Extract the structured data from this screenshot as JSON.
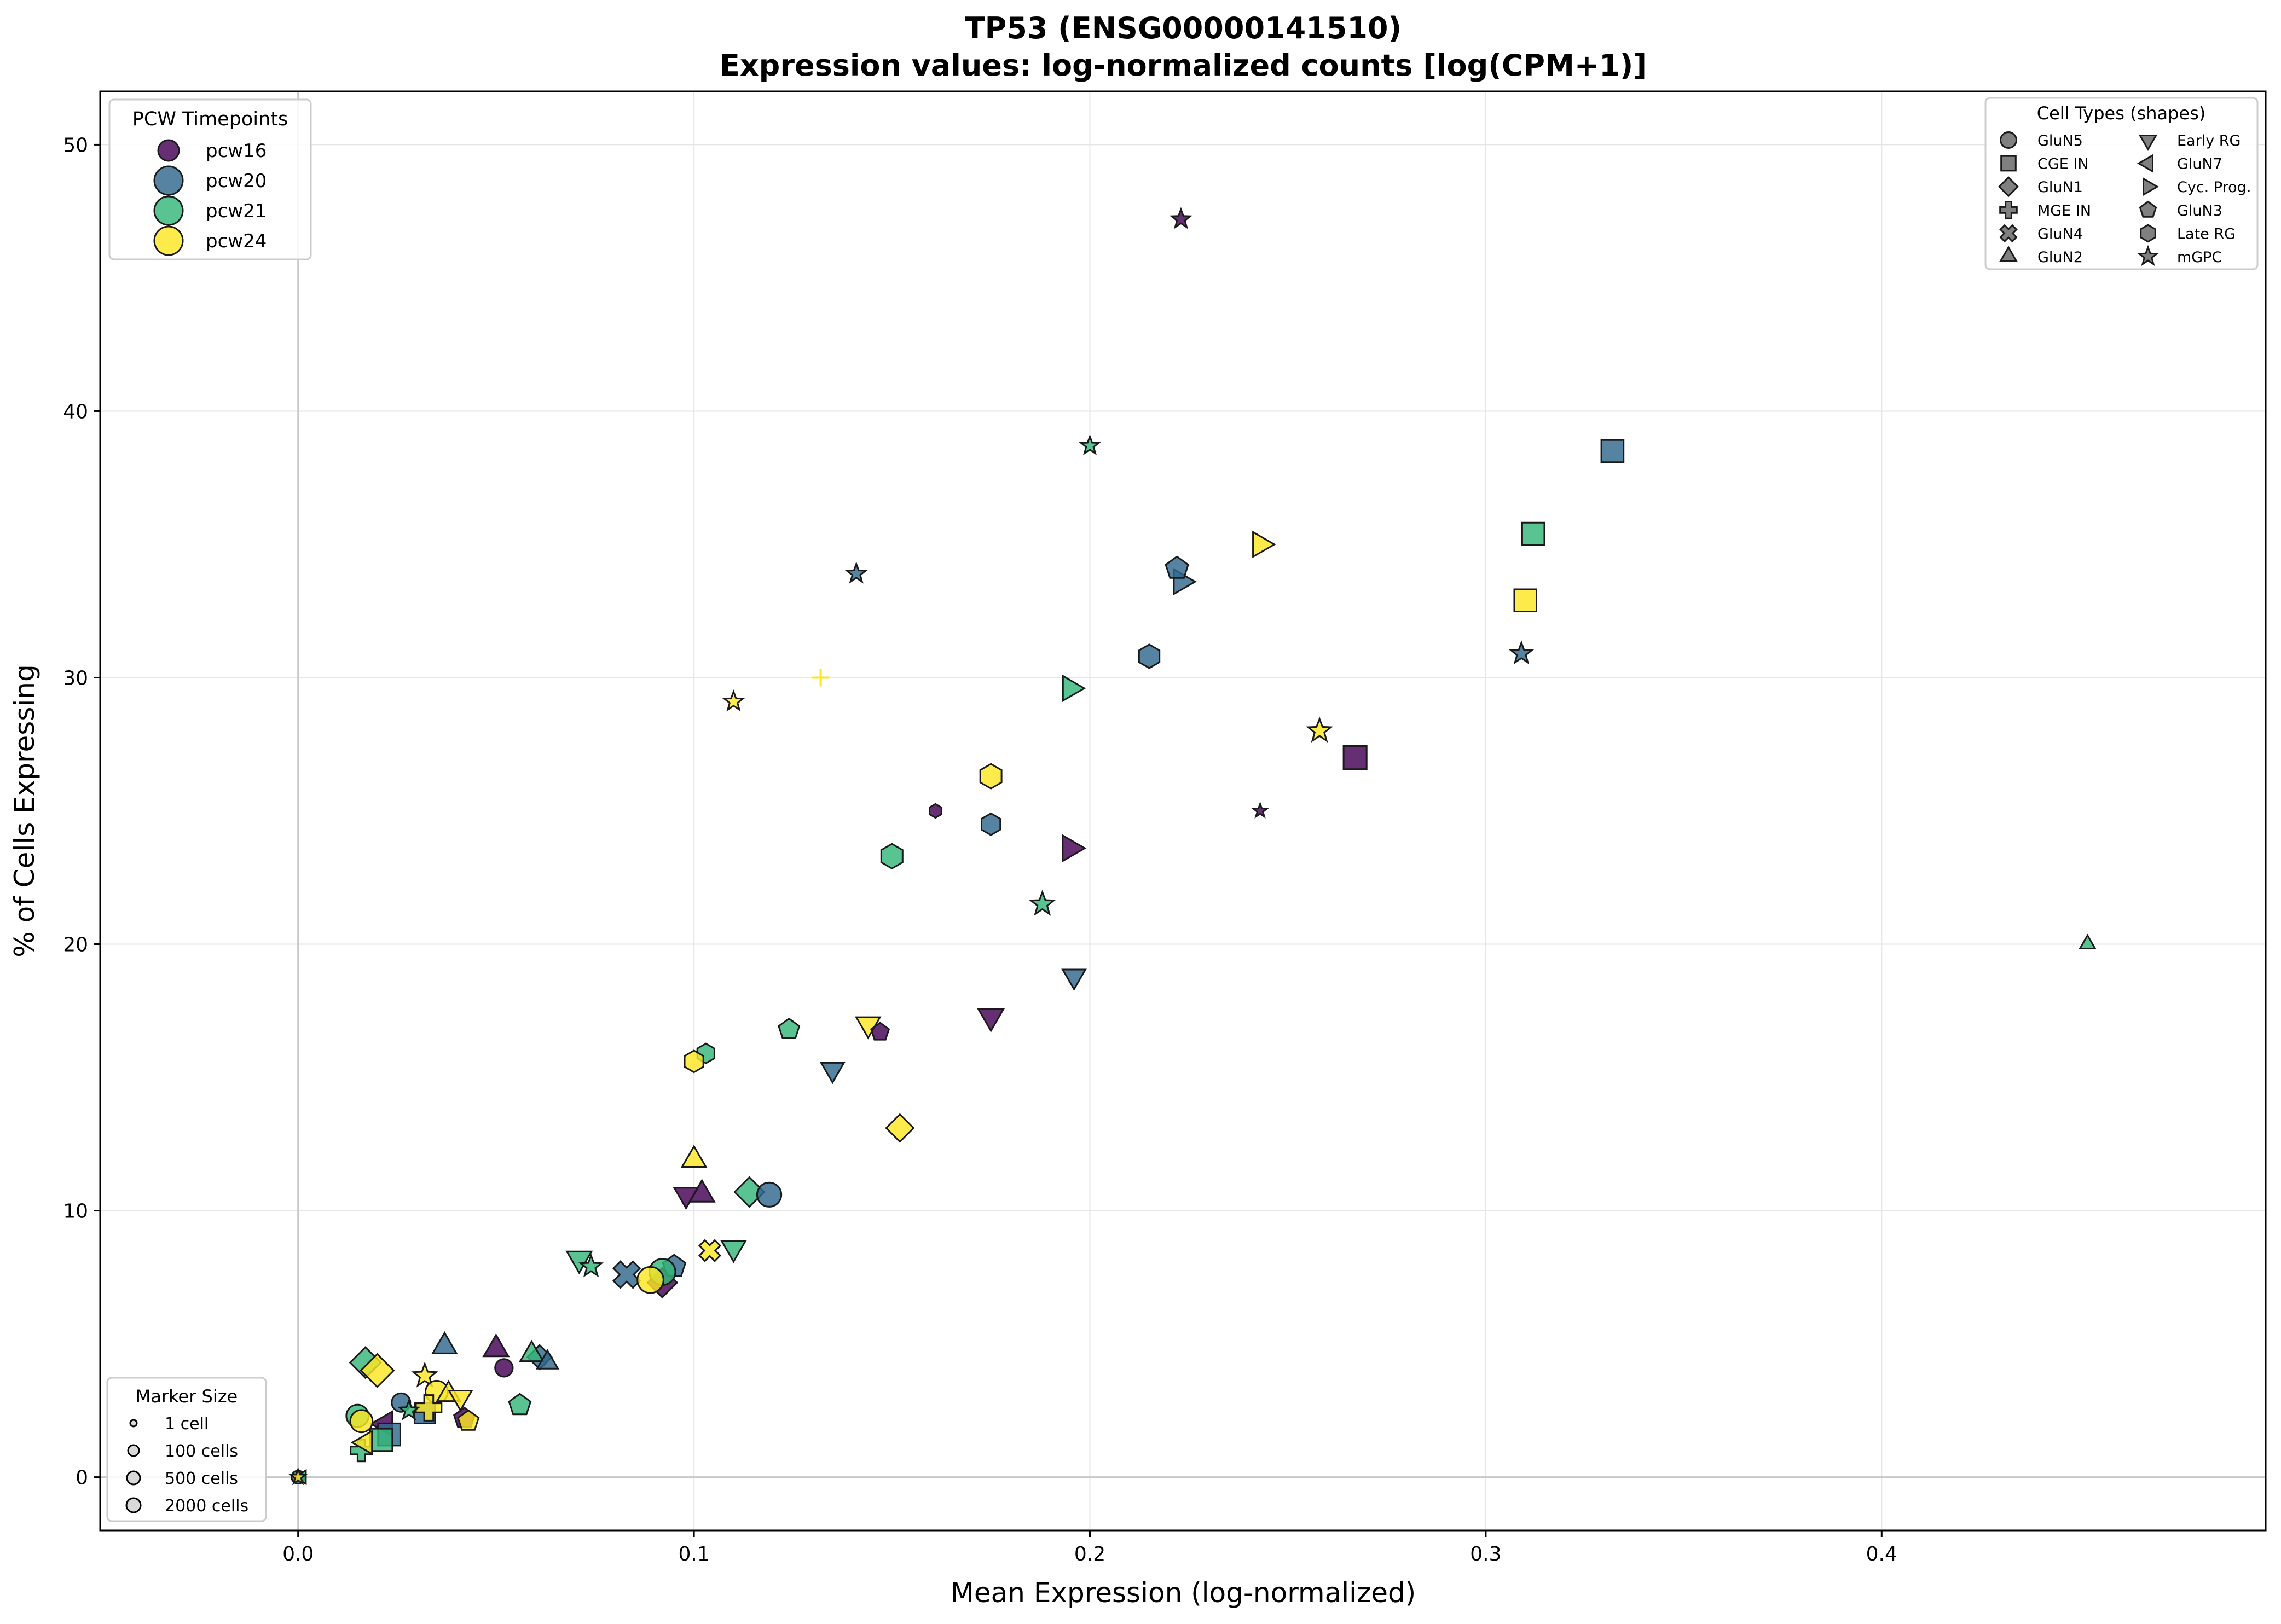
{
  "chart_data": {
    "type": "scatter",
    "title": "TP53 (ENSG00000141510)",
    "subtitle": "Expression values: log-normalized counts [log(CPM+1)]",
    "xlabel": "Mean Expression (log-normalized)",
    "ylabel": "% of Cells Expressing",
    "xlim": [
      -0.05,
      0.497
    ],
    "ylim": [
      -2,
      52
    ],
    "xticks": [
      0.0,
      0.1,
      0.2,
      0.3,
      0.4
    ],
    "xtick_labels": [
      "0.0",
      "0.1",
      "0.2",
      "0.3",
      "0.4"
    ],
    "yticks": [
      0,
      10,
      20,
      30,
      40,
      50
    ],
    "ytick_labels": [
      "0",
      "10",
      "20",
      "30",
      "40",
      "50"
    ],
    "grid": true,
    "reference_lines": {
      "x": 0,
      "y": 0
    },
    "colors": {
      "pcw16": "#440154",
      "pcw20": "#31688e",
      "pcw21": "#35b779",
      "pcw24": "#fde725"
    },
    "legends": {
      "timepoints": {
        "title": "PCW Timepoints",
        "placement": "top-left",
        "entries": [
          "pcw16",
          "pcw20",
          "pcw21",
          "pcw24"
        ]
      },
      "cell_types": {
        "title": "Cell Types (shapes)",
        "placement": "top-right",
        "entries": [
          {
            "label": "GluN5",
            "shape": "circle"
          },
          {
            "label": "CGE IN",
            "shape": "square"
          },
          {
            "label": "GluN1",
            "shape": "diamond"
          },
          {
            "label": "MGE IN",
            "shape": "plus"
          },
          {
            "label": "GluN4",
            "shape": "x"
          },
          {
            "label": "GluN2",
            "shape": "triangle-up"
          },
          {
            "label": "Early RG",
            "shape": "triangle-down"
          },
          {
            "label": "GluN7",
            "shape": "triangle-left"
          },
          {
            "label": "Cyc. Prog.",
            "shape": "triangle-right"
          },
          {
            "label": "GluN3",
            "shape": "pentagon"
          },
          {
            "label": "Late RG",
            "shape": "hexagon"
          },
          {
            "label": "mGPC",
            "shape": "star"
          }
        ]
      },
      "marker_size": {
        "title": "Marker Size",
        "placement": "bottom-left",
        "entries": [
          "1 cell",
          "100 cells",
          "500 cells",
          "2000 cells"
        ]
      }
    },
    "points": [
      {
        "x": 0.223,
        "y": 47.2,
        "tp": "pcw16",
        "ct": "mGPC",
        "s": 18
      },
      {
        "x": 0.2,
        "y": 38.7,
        "tp": "pcw21",
        "ct": "mGPC",
        "s": 17
      },
      {
        "x": 0.141,
        "y": 33.9,
        "tp": "pcw20",
        "ct": "mGPC",
        "s": 18
      },
      {
        "x": 0.11,
        "y": 29.1,
        "tp": "pcw24",
        "ct": "mGPC",
        "s": 18
      },
      {
        "x": 0.132,
        "y": 30.0,
        "tp": "pcw24",
        "ct": "MGE IN",
        "s": 16
      },
      {
        "x": 0.332,
        "y": 38.5,
        "tp": "pcw20",
        "ct": "CGE IN",
        "s": 26
      },
      {
        "x": 0.312,
        "y": 35.4,
        "tp": "pcw21",
        "ct": "CGE IN",
        "s": 26
      },
      {
        "x": 0.31,
        "y": 32.9,
        "tp": "pcw24",
        "ct": "CGE IN",
        "s": 26
      },
      {
        "x": 0.309,
        "y": 30.9,
        "tp": "pcw20",
        "ct": "mGPC",
        "s": 20
      },
      {
        "x": 0.267,
        "y": 27.0,
        "tp": "pcw16",
        "ct": "CGE IN",
        "s": 27
      },
      {
        "x": 0.258,
        "y": 28.0,
        "tp": "pcw24",
        "ct": "mGPC",
        "s": 22
      },
      {
        "x": 0.243,
        "y": 25.0,
        "tp": "pcw16",
        "ct": "mGPC",
        "s": 13
      },
      {
        "x": 0.243,
        "y": 35.0,
        "tp": "pcw24",
        "ct": "Cyc. Prog.",
        "s": 26
      },
      {
        "x": 0.223,
        "y": 33.6,
        "tp": "pcw20",
        "ct": "Cyc. Prog.",
        "s": 26
      },
      {
        "x": 0.222,
        "y": 34.1,
        "tp": "pcw20",
        "ct": "GluN3",
        "s": 24
      },
      {
        "x": 0.215,
        "y": 30.8,
        "tp": "pcw20",
        "ct": "Late RG",
        "s": 24
      },
      {
        "x": 0.195,
        "y": 29.6,
        "tp": "pcw21",
        "ct": "Cyc. Prog.",
        "s": 26
      },
      {
        "x": 0.195,
        "y": 23.6,
        "tp": "pcw16",
        "ct": "Cyc. Prog.",
        "s": 27
      },
      {
        "x": 0.175,
        "y": 26.3,
        "tp": "pcw24",
        "ct": "Late RG",
        "s": 25
      },
      {
        "x": 0.175,
        "y": 24.5,
        "tp": "pcw20",
        "ct": "Late RG",
        "s": 22
      },
      {
        "x": 0.161,
        "y": 25.0,
        "tp": "pcw16",
        "ct": "Late RG",
        "s": 14
      },
      {
        "x": 0.15,
        "y": 23.3,
        "tp": "pcw21",
        "ct": "Late RG",
        "s": 25
      },
      {
        "x": 0.188,
        "y": 21.5,
        "tp": "pcw21",
        "ct": "mGPC",
        "s": 22
      },
      {
        "x": 0.196,
        "y": 18.8,
        "tp": "pcw20",
        "ct": "Early RG",
        "s": 24
      },
      {
        "x": 0.175,
        "y": 17.3,
        "tp": "pcw16",
        "ct": "Early RG",
        "s": 27
      },
      {
        "x": 0.144,
        "y": 17.0,
        "tp": "pcw24",
        "ct": "Early RG",
        "s": 25
      },
      {
        "x": 0.147,
        "y": 16.7,
        "tp": "pcw16",
        "ct": "GluN3",
        "s": 19
      },
      {
        "x": 0.124,
        "y": 16.8,
        "tp": "pcw21",
        "ct": "GluN3",
        "s": 22
      },
      {
        "x": 0.135,
        "y": 15.3,
        "tp": "pcw20",
        "ct": "Early RG",
        "s": 24
      },
      {
        "x": 0.103,
        "y": 15.9,
        "tp": "pcw21",
        "ct": "Late RG",
        "s": 20
      },
      {
        "x": 0.1,
        "y": 15.6,
        "tp": "pcw24",
        "ct": "Late RG",
        "s": 22
      },
      {
        "x": 0.152,
        "y": 13.1,
        "tp": "pcw24",
        "ct": "GluN1",
        "s": 25
      },
      {
        "x": 0.1,
        "y": 11.9,
        "tp": "pcw24",
        "ct": "GluN2",
        "s": 25
      },
      {
        "x": 0.098,
        "y": 10.6,
        "tp": "pcw16",
        "ct": "Early RG",
        "s": 25
      },
      {
        "x": 0.102,
        "y": 10.6,
        "tp": "pcw16",
        "ct": "GluN2",
        "s": 26
      },
      {
        "x": 0.114,
        "y": 10.7,
        "tp": "pcw21",
        "ct": "GluN1",
        "s": 27
      },
      {
        "x": 0.119,
        "y": 10.6,
        "tp": "pcw20",
        "ct": "GluN5",
        "s": 26
      },
      {
        "x": 0.11,
        "y": 8.6,
        "tp": "pcw21",
        "ct": "Early RG",
        "s": 25
      },
      {
        "x": 0.104,
        "y": 8.5,
        "tp": "pcw24",
        "ct": "GluN4",
        "s": 22
      },
      {
        "x": 0.071,
        "y": 8.2,
        "tp": "pcw21",
        "ct": "Early RG",
        "s": 26
      },
      {
        "x": 0.074,
        "y": 7.9,
        "tp": "pcw21",
        "ct": "mGPC",
        "s": 20
      },
      {
        "x": 0.083,
        "y": 7.6,
        "tp": "pcw20",
        "ct": "GluN4",
        "s": 28
      },
      {
        "x": 0.092,
        "y": 7.3,
        "tp": "pcw16",
        "ct": "GluN1",
        "s": 27
      },
      {
        "x": 0.095,
        "y": 7.9,
        "tp": "pcw20",
        "ct": "GluN3",
        "s": 24
      },
      {
        "x": 0.092,
        "y": 7.7,
        "tp": "pcw21",
        "ct": "GluN5",
        "s": 28
      },
      {
        "x": 0.089,
        "y": 7.4,
        "tp": "pcw24",
        "ct": "GluN5",
        "s": 28
      },
      {
        "x": 0.037,
        "y": 4.9,
        "tp": "pcw20",
        "ct": "GluN2",
        "s": 25
      },
      {
        "x": 0.05,
        "y": 4.8,
        "tp": "pcw16",
        "ct": "GluN2",
        "s": 26
      },
      {
        "x": 0.052,
        "y": 4.1,
        "tp": "pcw16",
        "ct": "GluN5",
        "s": 19
      },
      {
        "x": 0.061,
        "y": 4.5,
        "tp": "pcw20",
        "ct": "GluN1",
        "s": 22
      },
      {
        "x": 0.059,
        "y": 4.6,
        "tp": "pcw21",
        "ct": "GluN2",
        "s": 24
      },
      {
        "x": 0.063,
        "y": 4.3,
        "tp": "pcw20",
        "ct": "GluN2",
        "s": 22
      },
      {
        "x": 0.056,
        "y": 2.7,
        "tp": "pcw21",
        "ct": "GluN3",
        "s": 23
      },
      {
        "x": 0.017,
        "y": 4.3,
        "tp": "pcw21",
        "ct": "GluN1",
        "s": 28
      },
      {
        "x": 0.02,
        "y": 4.0,
        "tp": "pcw24",
        "ct": "GluN1",
        "s": 30
      },
      {
        "x": 0.032,
        "y": 3.8,
        "tp": "pcw24",
        "ct": "mGPC",
        "s": 22
      },
      {
        "x": 0.035,
        "y": 3.2,
        "tp": "pcw24",
        "ct": "GluN5",
        "s": 24
      },
      {
        "x": 0.038,
        "y": 3.1,
        "tp": "pcw24",
        "ct": "GluN2",
        "s": 24
      },
      {
        "x": 0.041,
        "y": 3.0,
        "tp": "pcw24",
        "ct": "Early RG",
        "s": 24
      },
      {
        "x": 0.026,
        "y": 2.8,
        "tp": "pcw20",
        "ct": "GluN5",
        "s": 20
      },
      {
        "x": 0.032,
        "y": 2.4,
        "tp": "pcw20",
        "ct": "CGE IN",
        "s": 24
      },
      {
        "x": 0.033,
        "y": 2.6,
        "tp": "pcw24",
        "ct": "MGE IN",
        "s": 26
      },
      {
        "x": 0.028,
        "y": 2.5,
        "tp": "pcw21",
        "ct": "mGPC",
        "s": 18
      },
      {
        "x": 0.022,
        "y": 2.0,
        "tp": "pcw16",
        "ct": "GluN7",
        "s": 26
      },
      {
        "x": 0.023,
        "y": 1.6,
        "tp": "pcw20",
        "ct": "CGE IN",
        "s": 26
      },
      {
        "x": 0.021,
        "y": 1.4,
        "tp": "pcw21",
        "ct": "CGE IN",
        "s": 26
      },
      {
        "x": 0.042,
        "y": 2.2,
        "tp": "pcw16",
        "ct": "GluN3",
        "s": 22
      },
      {
        "x": 0.043,
        "y": 2.1,
        "tp": "pcw24",
        "ct": "GluN3",
        "s": 22
      },
      {
        "x": 0.015,
        "y": 2.3,
        "tp": "pcw21",
        "ct": "GluN5",
        "s": 24
      },
      {
        "x": 0.016,
        "y": 2.1,
        "tp": "pcw24",
        "ct": "GluN5",
        "s": 24
      },
      {
        "x": 0.016,
        "y": 1.0,
        "tp": "pcw21",
        "ct": "MGE IN",
        "s": 22
      },
      {
        "x": 0.017,
        "y": 1.3,
        "tp": "pcw24",
        "ct": "GluN7",
        "s": 24
      },
      {
        "x": 0.0,
        "y": 0.0,
        "tp": "pcw20",
        "ct": "GluN5",
        "s": 14
      },
      {
        "x": 0.001,
        "y": 0.0,
        "tp": "pcw21",
        "ct": "GluN7",
        "s": 14
      },
      {
        "x": 0.0,
        "y": 0.0,
        "tp": "pcw24",
        "ct": "mGPC",
        "s": 14
      },
      {
        "x": 0.452,
        "y": 20.0,
        "tp": "pcw21",
        "ct": "GluN2",
        "s": 16
      }
    ]
  }
}
